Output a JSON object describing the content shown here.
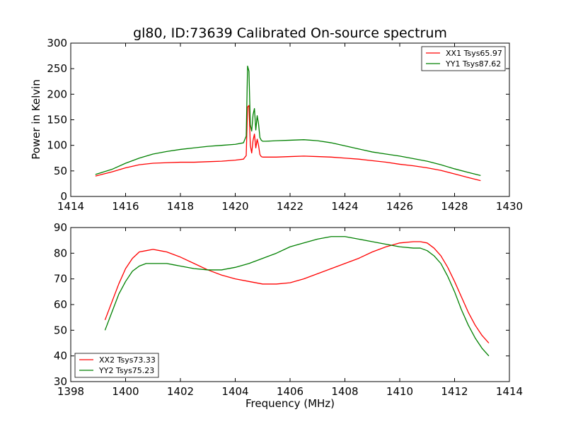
{
  "chart_data": [
    {
      "type": "line",
      "title": "gl80, ID:73639 Calibrated On-source spectrum",
      "ylabel": "Power in Kelvin",
      "xlabel": "",
      "xlim": [
        1414,
        1430
      ],
      "ylim": [
        0,
        300
      ],
      "xticks": [
        "1414",
        "1416",
        "1418",
        "1420",
        "1422",
        "1424",
        "1426",
        "1428",
        "1430"
      ],
      "yticks": [
        "0",
        "50",
        "100",
        "150",
        "200",
        "250",
        "300"
      ],
      "grid": false,
      "legend_position": "top-right",
      "series": [
        {
          "name": "XX1 Tsys65.97",
          "color": "#ff0000",
          "x": [
            1414.9,
            1415.5,
            1416.0,
            1416.5,
            1417.0,
            1417.5,
            1418.0,
            1418.5,
            1419.0,
            1419.5,
            1420.0,
            1420.3,
            1420.4,
            1420.45,
            1420.5,
            1420.55,
            1420.6,
            1420.65,
            1420.7,
            1420.75,
            1420.8,
            1420.85,
            1420.9,
            1420.95,
            1421.0,
            1421.1,
            1421.5,
            1422.0,
            1422.5,
            1423.0,
            1423.5,
            1424.0,
            1424.5,
            1425.0,
            1425.5,
            1426.0,
            1426.5,
            1427.0,
            1427.5,
            1428.0,
            1428.5,
            1428.95
          ],
          "y": [
            40,
            48,
            56,
            62,
            65,
            66,
            67,
            67,
            68,
            69,
            71,
            73,
            80,
            175,
            178,
            100,
            85,
            110,
            122,
            95,
            112,
            100,
            82,
            78,
            77,
            77,
            77,
            78,
            79,
            78,
            77,
            75,
            73,
            70,
            67,
            63,
            60,
            56,
            51,
            44,
            37,
            31
          ]
        },
        {
          "name": "YY1 Tsys87.62",
          "color": "#008000",
          "x": [
            1414.9,
            1415.5,
            1416.0,
            1416.5,
            1417.0,
            1417.5,
            1418.0,
            1418.5,
            1419.0,
            1419.5,
            1420.0,
            1420.3,
            1420.4,
            1420.45,
            1420.5,
            1420.55,
            1420.6,
            1420.65,
            1420.7,
            1420.75,
            1420.8,
            1420.85,
            1420.9,
            1420.95,
            1421.0,
            1421.1,
            1421.5,
            1422.0,
            1422.5,
            1423.0,
            1423.5,
            1424.0,
            1424.5,
            1425.0,
            1425.5,
            1426.0,
            1426.5,
            1427.0,
            1427.5,
            1428.0,
            1428.5,
            1428.95
          ],
          "y": [
            43,
            53,
            65,
            75,
            83,
            88,
            92,
            95,
            98,
            100,
            102,
            105,
            118,
            255,
            245,
            140,
            128,
            160,
            172,
            130,
            158,
            142,
            115,
            110,
            108,
            108,
            109,
            110,
            111,
            109,
            105,
            99,
            93,
            87,
            83,
            79,
            74,
            69,
            62,
            54,
            47,
            41
          ]
        }
      ]
    },
    {
      "type": "line",
      "title": "",
      "xlabel": "Frequency (MHz)",
      "ylabel": "",
      "xlim": [
        1398,
        1414
      ],
      "ylim": [
        30,
        90
      ],
      "xticks": [
        "1398",
        "1400",
        "1402",
        "1404",
        "1406",
        "1408",
        "1410",
        "1412",
        "1414"
      ],
      "yticks": [
        "30",
        "40",
        "50",
        "60",
        "70",
        "80",
        "90"
      ],
      "grid": false,
      "legend_position": "bottom-left",
      "series": [
        {
          "name": "XX2 Tsys73.33",
          "color": "#ff0000",
          "x": [
            1399.25,
            1399.5,
            1399.75,
            1400.0,
            1400.25,
            1400.5,
            1400.75,
            1401.0,
            1401.25,
            1401.5,
            1401.75,
            1402.0,
            1402.5,
            1403.0,
            1403.5,
            1404.0,
            1404.5,
            1405.0,
            1405.5,
            1406.0,
            1406.5,
            1407.0,
            1407.5,
            1408.0,
            1408.5,
            1409.0,
            1409.5,
            1410.0,
            1410.5,
            1410.75,
            1411.0,
            1411.25,
            1411.5,
            1411.75,
            1412.0,
            1412.25,
            1412.5,
            1412.75,
            1413.0,
            1413.25
          ],
          "y": [
            54,
            61,
            68,
            74,
            78,
            80.5,
            81,
            81.5,
            81,
            80.5,
            79.5,
            78.5,
            76,
            73.5,
            71.5,
            70,
            69,
            68,
            68,
            68.5,
            70,
            72,
            74,
            76,
            78,
            80.5,
            82.5,
            84,
            84.5,
            84.5,
            84,
            82,
            79,
            74.5,
            69,
            63,
            57,
            52,
            48,
            45
          ]
        },
        {
          "name": "YY2 Tsys75.23",
          "color": "#008000",
          "x": [
            1399.25,
            1399.5,
            1399.75,
            1400.0,
            1400.25,
            1400.5,
            1400.75,
            1401.0,
            1401.25,
            1401.5,
            1401.75,
            1402.0,
            1402.5,
            1403.0,
            1403.5,
            1404.0,
            1404.5,
            1405.0,
            1405.5,
            1406.0,
            1406.5,
            1407.0,
            1407.5,
            1408.0,
            1408.5,
            1409.0,
            1409.5,
            1410.0,
            1410.5,
            1410.75,
            1411.0,
            1411.25,
            1411.5,
            1411.75,
            1412.0,
            1412.25,
            1412.5,
            1412.75,
            1413.0,
            1413.25
          ],
          "y": [
            50,
            57,
            64,
            69,
            73,
            75,
            76,
            76,
            76,
            76,
            75.5,
            75,
            74,
            73.5,
            73.5,
            74.5,
            76,
            78,
            80,
            82.5,
            84,
            85.5,
            86.5,
            86.5,
            85.5,
            84.5,
            83.5,
            82.5,
            82,
            82,
            81,
            79,
            76,
            71,
            65,
            58,
            52,
            47,
            43,
            40
          ]
        }
      ]
    }
  ]
}
